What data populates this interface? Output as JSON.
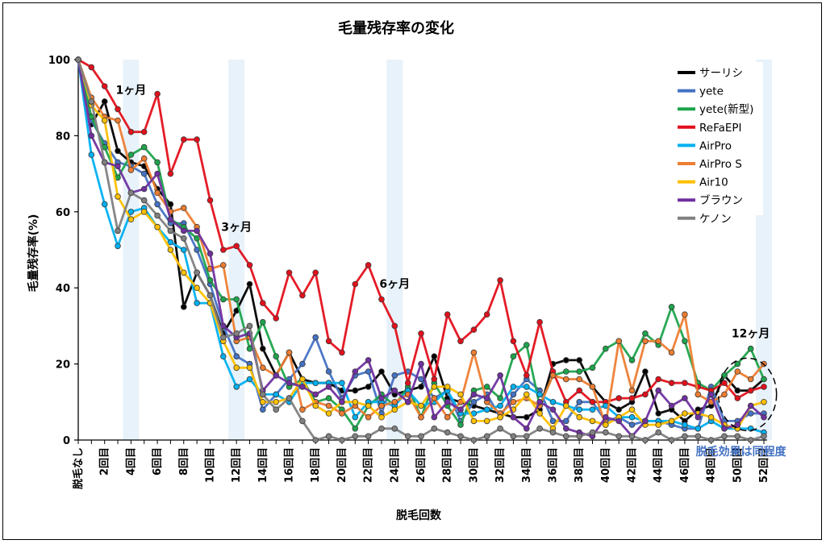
{
  "chart_data": {
    "type": "line",
    "title": "毛量残存率の変化",
    "xlabel": "脱毛回数",
    "ylabel": "毛量残存率(%)",
    "ylim": [
      0,
      100
    ],
    "yticks": [
      0,
      20,
      40,
      60,
      80,
      100
    ],
    "x": [
      "脱毛なし",
      "1",
      "2",
      "3",
      "4",
      "5",
      "6",
      "7",
      "8",
      "9",
      "10",
      "11",
      "12",
      "13",
      "14",
      "15",
      "16",
      "17",
      "18",
      "19",
      "20",
      "21",
      "22",
      "23",
      "24",
      "25",
      "26",
      "27",
      "28",
      "29",
      "30",
      "31",
      "32",
      "33",
      "34",
      "35",
      "36",
      "37",
      "38",
      "39",
      "40",
      "41",
      "42",
      "43",
      "44",
      "45",
      "46",
      "47",
      "48",
      "49",
      "50",
      "51",
      "52"
    ],
    "xtick_labels": [
      {
        "at": 0,
        "label": "脱毛なし"
      },
      {
        "at": 2,
        "label": "2回目"
      },
      {
        "at": 4,
        "label": "4回目"
      },
      {
        "at": 6,
        "label": "6回目"
      },
      {
        "at": 8,
        "label": "8回目"
      },
      {
        "at": 10,
        "label": "10回目"
      },
      {
        "at": 12,
        "label": "12回目"
      },
      {
        "at": 14,
        "label": "14回目"
      },
      {
        "at": 16,
        "label": "16回目"
      },
      {
        "at": 18,
        "label": "18回目"
      },
      {
        "at": 20,
        "label": "20回目"
      },
      {
        "at": 22,
        "label": "22回目"
      },
      {
        "at": 24,
        "label": "24回目"
      },
      {
        "at": 26,
        "label": "26回目"
      },
      {
        "at": 28,
        "label": "28回目"
      },
      {
        "at": 30,
        "label": "30回目"
      },
      {
        "at": 32,
        "label": "32回目"
      },
      {
        "at": 34,
        "label": "34回目"
      },
      {
        "at": 36,
        "label": "36回目"
      },
      {
        "at": 38,
        "label": "38回目"
      },
      {
        "at": 40,
        "label": "40回目"
      },
      {
        "at": 42,
        "label": "42回目"
      },
      {
        "at": 44,
        "label": "44回目"
      },
      {
        "at": 46,
        "label": "46回目"
      },
      {
        "at": 48,
        "label": "48回目"
      },
      {
        "at": 50,
        "label": "50回目"
      },
      {
        "at": 52,
        "label": "52回目"
      }
    ],
    "grid": false,
    "legend_position": "top-right",
    "highlight_bands": [
      4,
      12,
      24,
      52
    ],
    "annotations": [
      {
        "text": "1ヶ月",
        "at_x": 4,
        "at_y": 91
      },
      {
        "text": "3ヶ月",
        "at_x": 12,
        "at_y": 55
      },
      {
        "text": "6ヶ月",
        "at_x": 24,
        "at_y": 40
      },
      {
        "text": "12ヶ月",
        "at_x": 51,
        "at_y": 27
      }
    ],
    "callout": {
      "text": "脱毛効果は同程度",
      "around_x": 51,
      "around_y": 12
    },
    "series": [
      {
        "name": "サーリシ",
        "color": "#000000",
        "values": [
          100,
          83,
          89,
          76,
          73,
          72,
          66,
          62,
          35,
          44,
          38,
          28,
          34,
          41,
          24,
          17,
          23,
          16,
          15,
          15,
          13,
          13,
          14,
          18,
          12,
          13,
          14,
          22,
          11,
          10,
          9,
          8,
          7,
          6,
          6,
          8,
          20,
          21,
          21,
          14,
          10,
          8,
          10,
          18,
          7,
          8,
          5,
          8,
          9,
          17,
          13,
          13,
          16
        ]
      },
      {
        "name": "yete",
        "color": "#4472C4",
        "values": [
          100,
          84,
          78,
          73,
          72,
          70,
          62,
          57,
          57,
          50,
          41,
          30,
          22,
          20,
          8,
          12,
          16,
          20,
          27,
          18,
          11,
          17,
          18,
          7,
          17,
          18,
          16,
          11,
          13,
          5,
          10,
          12,
          6,
          12,
          16,
          13,
          5,
          5,
          10,
          10,
          5,
          6,
          4,
          5,
          5,
          4,
          3,
          3,
          14,
          5,
          5,
          7,
          7
        ]
      },
      {
        "name": "yete(新型)",
        "color": "#1DA44C",
        "values": [
          100,
          85,
          77,
          69,
          75,
          77,
          73,
          58,
          56,
          53,
          42,
          37,
          37,
          24,
          31,
          22,
          14,
          16,
          10,
          11,
          8,
          3,
          9,
          12,
          9,
          14,
          6,
          15,
          9,
          4,
          13,
          14,
          11,
          22,
          25,
          9,
          17,
          18,
          18,
          19,
          24,
          26,
          21,
          28,
          25,
          35,
          26,
          15,
          13,
          17,
          20,
          24,
          16
        ]
      },
      {
        "name": "ReFaEPI",
        "color": "#E3101B",
        "values": [
          100,
          98,
          93,
          87,
          81,
          81,
          91,
          70,
          79,
          79,
          63,
          50,
          51,
          46,
          36,
          32,
          44,
          38,
          44,
          26,
          23,
          41,
          46,
          37,
          30,
          15,
          28,
          16,
          33,
          26,
          29,
          33,
          42,
          26,
          17,
          31,
          18,
          10,
          13,
          10,
          10,
          11,
          11,
          12,
          16,
          15,
          15,
          14,
          13,
          15,
          11,
          13,
          14
        ]
      },
      {
        "name": "AirPro",
        "color": "#00B0F0",
        "values": [
          100,
          75,
          62,
          51,
          60,
          61,
          56,
          52,
          50,
          36,
          36,
          22,
          14,
          16,
          12,
          12,
          10,
          15,
          15,
          15,
          15,
          6,
          10,
          10,
          9,
          13,
          9,
          10,
          13,
          7,
          7,
          8,
          9,
          14,
          14,
          12,
          10,
          9,
          8,
          8,
          9,
          6,
          6,
          5,
          5,
          5,
          4,
          3,
          5,
          3,
          3,
          3,
          2
        ]
      },
      {
        "name": "AirPro S",
        "color": "#ED7D31",
        "values": [
          100,
          90,
          85,
          84,
          71,
          74,
          65,
          60,
          61,
          56,
          45,
          46,
          26,
          27,
          19,
          17,
          23,
          8,
          10,
          9,
          7,
          9,
          6,
          9,
          10,
          12,
          6,
          11,
          6,
          10,
          23,
          10,
          7,
          10,
          11,
          9,
          17,
          16,
          16,
          14,
          4,
          26,
          13,
          26,
          26,
          23,
          33,
          12,
          10,
          12,
          18,
          16,
          20
        ]
      },
      {
        "name": "Air10",
        "color": "#FFC000",
        "values": [
          100,
          88,
          84,
          64,
          58,
          60,
          56,
          50,
          44,
          40,
          36,
          26,
          19,
          19,
          10,
          10,
          11,
          16,
          9,
          7,
          10,
          10,
          9,
          6,
          8,
          10,
          9,
          14,
          14,
          12,
          5,
          5,
          6,
          8,
          12,
          7,
          3,
          9,
          6,
          5,
          4,
          6,
          8,
          4,
          4,
          5,
          7,
          7,
          6,
          4,
          3,
          9,
          10
        ]
      },
      {
        "name": "ブラウン",
        "color": "#7030A0",
        "values": [
          100,
          80,
          73,
          72,
          65,
          66,
          70,
          58,
          55,
          55,
          49,
          30,
          27,
          28,
          13,
          17,
          15,
          14,
          12,
          14,
          10,
          18,
          21,
          11,
          13,
          10,
          20,
          6,
          10,
          8,
          12,
          11,
          17,
          6,
          3,
          10,
          8,
          3,
          2,
          1,
          6,
          5,
          1,
          5,
          13,
          9,
          11,
          6,
          12,
          3,
          4,
          9,
          6
        ]
      },
      {
        "name": "ケノン",
        "color": "#808080",
        "values": [
          100,
          89,
          73,
          55,
          65,
          63,
          59,
          55,
          53,
          44,
          38,
          27,
          28,
          30,
          12,
          8,
          11,
          5,
          0,
          1,
          0,
          1,
          1,
          3,
          3,
          1,
          1,
          3,
          2,
          1,
          0,
          1,
          3,
          1,
          1,
          3,
          2,
          1,
          1,
          2,
          2,
          1,
          1,
          0,
          2,
          0,
          1,
          1,
          0,
          1,
          1,
          0,
          1
        ]
      }
    ]
  }
}
